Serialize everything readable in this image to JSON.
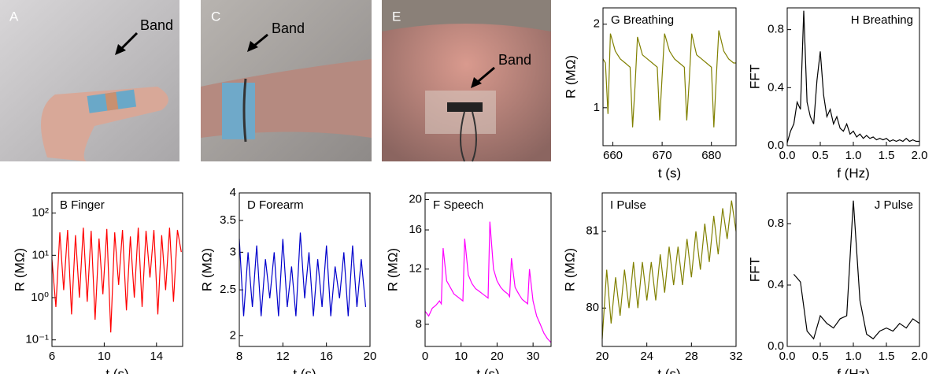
{
  "photos": [
    {
      "label": "A",
      "annotation": "Band"
    },
    {
      "label": "C",
      "annotation": "Band"
    },
    {
      "label": "E",
      "annotation": "Band"
    }
  ],
  "chart_data": [
    {
      "type": "line",
      "title": "G Breathing",
      "x_label": "t (s)",
      "y_label": "R (MΩ)",
      "color": "#808000",
      "log_y": true,
      "xlim": [
        658,
        685
      ],
      "xticks": [
        660,
        670,
        680
      ],
      "ylim": [
        0.73,
        2.29
      ],
      "yticks": [
        1,
        2
      ],
      "x": [
        658,
        658.5,
        659,
        659.5,
        660.5,
        661.5,
        662.5,
        663.5,
        664,
        664.5,
        665,
        666,
        667,
        668,
        669,
        669.5,
        670,
        670.5,
        671.5,
        672.5,
        673.5,
        674.5,
        675,
        675.5,
        676,
        677,
        678,
        679,
        680,
        680.5,
        681,
        681.5,
        682.5,
        683.5,
        684.5,
        685
      ],
      "values": [
        1.5,
        1.45,
        0.95,
        1.85,
        1.6,
        1.5,
        1.45,
        1.4,
        0.85,
        1.2,
        1.8,
        1.55,
        1.5,
        1.45,
        1.4,
        0.9,
        1.3,
        1.85,
        1.6,
        1.5,
        1.45,
        1.4,
        0.9,
        1.25,
        1.85,
        1.55,
        1.5,
        1.45,
        1.4,
        0.85,
        1.3,
        1.9,
        1.6,
        1.5,
        1.45,
        1.45
      ]
    },
    {
      "type": "line",
      "title": "H Breathing",
      "x_label": "f (Hz)",
      "y_label": "FFT",
      "color": "#000000",
      "log_y": false,
      "title_right": true,
      "xlim": [
        0,
        2
      ],
      "xticks": [
        {
          "value": 0,
          "label": "0.0"
        },
        {
          "value": 0.5,
          "label": "0.5"
        },
        {
          "value": 1,
          "label": "1.0"
        },
        {
          "value": 1.5,
          "label": "1.5"
        },
        {
          "value": 2,
          "label": "2.0"
        }
      ],
      "ylim": [
        0,
        0.95
      ],
      "yticks": [
        {
          "value": 0,
          "label": "0.0"
        },
        {
          "value": 0.4,
          "label": "0.4"
        },
        {
          "value": 0.8,
          "label": "0.8"
        }
      ],
      "x": [
        0,
        0.05,
        0.1,
        0.15,
        0.2,
        0.25,
        0.3,
        0.35,
        0.4,
        0.45,
        0.5,
        0.55,
        0.6,
        0.65,
        0.7,
        0.75,
        0.8,
        0.85,
        0.9,
        0.95,
        1,
        1.05,
        1.1,
        1.15,
        1.2,
        1.25,
        1.3,
        1.35,
        1.4,
        1.45,
        1.5,
        1.55,
        1.6,
        1.65,
        1.7,
        1.75,
        1.8,
        1.85,
        1.9,
        1.95,
        2
      ],
      "values": [
        0.02,
        0.1,
        0.15,
        0.3,
        0.25,
        0.93,
        0.3,
        0.2,
        0.15,
        0.45,
        0.65,
        0.35,
        0.2,
        0.25,
        0.15,
        0.2,
        0.12,
        0.1,
        0.15,
        0.08,
        0.1,
        0.06,
        0.08,
        0.05,
        0.07,
        0.05,
        0.06,
        0.04,
        0.05,
        0.04,
        0.05,
        0.03,
        0.04,
        0.03,
        0.04,
        0.03,
        0.05,
        0.03,
        0.04,
        0.03,
        0.03
      ]
    },
    {
      "type": "line",
      "title": "B Finger",
      "x_label": "t (s)",
      "y_label": "R (MΩ)",
      "color": "#ff0000",
      "log_y": true,
      "xlim": [
        6,
        16
      ],
      "xticks": [
        6,
        10,
        14
      ],
      "ylim": [
        0.07,
        300
      ],
      "yticks": [
        {
          "value": 0.1,
          "label": "10⁻¹"
        },
        {
          "value": 1,
          "label": "10⁰"
        },
        {
          "value": 10,
          "label": "10¹"
        },
        {
          "value": 100,
          "label": "10²"
        }
      ],
      "x": [
        6,
        6.3,
        6.6,
        6.9,
        7.2,
        7.5,
        7.8,
        8.1,
        8.4,
        8.7,
        9,
        9.3,
        9.6,
        9.9,
        10.2,
        10.5,
        10.8,
        11.1,
        11.4,
        11.7,
        12,
        12.3,
        12.6,
        12.9,
        13.2,
        13.5,
        13.8,
        14.1,
        14.4,
        14.7,
        15,
        15.3,
        15.6,
        15.9
      ],
      "values": [
        8,
        0.6,
        35,
        1.5,
        40,
        0.4,
        30,
        1,
        45,
        0.8,
        38,
        0.3,
        25,
        1.2,
        42,
        0.15,
        35,
        2,
        40,
        0.5,
        28,
        1,
        45,
        0.6,
        38,
        3,
        40,
        0.4,
        30,
        1.5,
        45,
        0.8,
        40,
        12
      ]
    },
    {
      "type": "line",
      "title": "D Forearm",
      "x_label": "t (s)",
      "y_label": "R (MΩ)",
      "color": "#0000cc",
      "log_y": true,
      "xlim": [
        8,
        20
      ],
      "xticks": [
        8,
        12,
        16,
        20
      ],
      "ylim": [
        1.9,
        4
      ],
      "yticks": [
        2,
        2.5,
        3,
        3.5,
        4
      ],
      "x": [
        8,
        8.4,
        8.8,
        9.2,
        9.6,
        10,
        10.4,
        10.8,
        11.2,
        11.6,
        12,
        12.4,
        12.8,
        13.2,
        13.6,
        14,
        14.4,
        14.8,
        15.2,
        15.6,
        16,
        16.4,
        16.8,
        17.2,
        17.6,
        18,
        18.4,
        18.8,
        19.2,
        19.6
      ],
      "values": [
        3.2,
        2.2,
        3.0,
        2.3,
        3.1,
        2.2,
        2.9,
        2.4,
        3.0,
        2.2,
        3.2,
        2.3,
        2.8,
        2.2,
        3.3,
        2.4,
        3.0,
        2.2,
        2.9,
        2.3,
        3.1,
        2.2,
        2.8,
        2.4,
        3.0,
        2.2,
        3.1,
        2.3,
        2.9,
        2.3
      ]
    },
    {
      "type": "line",
      "title": "F Speech",
      "x_label": "t (s)",
      "y_label": "R (MΩ)",
      "color": "#ff00ff",
      "log_y": true,
      "xlim": [
        0,
        35
      ],
      "xticks": [
        0,
        10,
        20,
        30
      ],
      "ylim": [
        6.8,
        21
      ],
      "yticks": [
        8,
        12,
        16,
        20
      ],
      "x": [
        0,
        1,
        2,
        3,
        4,
        4.5,
        5,
        6,
        7,
        8,
        9,
        10,
        10.5,
        11,
        12,
        13,
        14,
        15,
        16,
        17,
        17.5,
        18,
        19,
        20,
        21,
        22,
        23,
        23.5,
        24,
        25,
        26,
        27,
        28,
        28.5,
        29,
        30,
        31,
        32,
        33,
        34,
        35
      ],
      "values": [
        8.8,
        8.5,
        9,
        9.2,
        9.5,
        9.3,
        14,
        11,
        10.5,
        10,
        9.8,
        9.6,
        9.5,
        15,
        11.5,
        10.8,
        10.4,
        10.2,
        10,
        9.8,
        9.7,
        17,
        12,
        11,
        10.5,
        10.2,
        10,
        9.8,
        13,
        10.5,
        10,
        9.6,
        9.4,
        9.3,
        12,
        9.5,
        8.5,
        8,
        7.5,
        7.2,
        7.0
      ]
    },
    {
      "type": "line",
      "title": "I Pulse",
      "x_label": "t (s)",
      "y_label": "R (MΩ)",
      "color": "#808000",
      "log_y": false,
      "xlim": [
        20,
        32
      ],
      "xticks": [
        20,
        24,
        28,
        32
      ],
      "ylim": [
        79.5,
        81.5
      ],
      "yticks": [
        80,
        81
      ],
      "x": [
        20,
        20.4,
        20.8,
        21.2,
        21.6,
        22,
        22.4,
        22.8,
        23.2,
        23.6,
        24,
        24.4,
        24.8,
        25.2,
        25.6,
        26,
        26.4,
        26.8,
        27.2,
        27.6,
        28,
        28.4,
        28.8,
        29.2,
        29.6,
        30,
        30.4,
        30.8,
        31.2,
        31.6,
        32
      ],
      "values": [
        79.6,
        80.5,
        79.8,
        80.4,
        79.9,
        80.5,
        80.0,
        80.6,
        80.0,
        80.6,
        80.1,
        80.6,
        80.1,
        80.7,
        80.2,
        80.8,
        80.3,
        80.8,
        80.3,
        80.9,
        80.4,
        81.0,
        80.5,
        81.1,
        80.6,
        81.2,
        80.7,
        81.3,
        80.9,
        81.4,
        81.0
      ]
    },
    {
      "type": "line",
      "title": "J Pulse",
      "x_label": "f (Hz)",
      "y_label": "FFT",
      "color": "#000000",
      "log_y": false,
      "title_right": true,
      "xlim": [
        0,
        2
      ],
      "xticks": [
        {
          "value": 0,
          "label": "0.0"
        },
        {
          "value": 0.5,
          "label": "0.5"
        },
        {
          "value": 1,
          "label": "1.0"
        },
        {
          "value": 1.5,
          "label": "1.5"
        },
        {
          "value": 2,
          "label": "2.0"
        }
      ],
      "ylim": [
        0,
        1.0
      ],
      "yticks": [
        {
          "value": 0,
          "label": "0.0"
        },
        {
          "value": 0.4,
          "label": "0.4"
        },
        {
          "value": 0.8,
          "label": "0.8"
        }
      ],
      "x": [
        0.1,
        0.2,
        0.3,
        0.4,
        0.5,
        0.6,
        0.7,
        0.8,
        0.9,
        1,
        1.1,
        1.2,
        1.3,
        1.4,
        1.5,
        1.6,
        1.7,
        1.8,
        1.9,
        2
      ],
      "values": [
        0.47,
        0.42,
        0.1,
        0.05,
        0.2,
        0.15,
        0.12,
        0.18,
        0.2,
        0.95,
        0.3,
        0.08,
        0.05,
        0.1,
        0.12,
        0.1,
        0.15,
        0.12,
        0.18,
        0.15
      ]
    }
  ]
}
